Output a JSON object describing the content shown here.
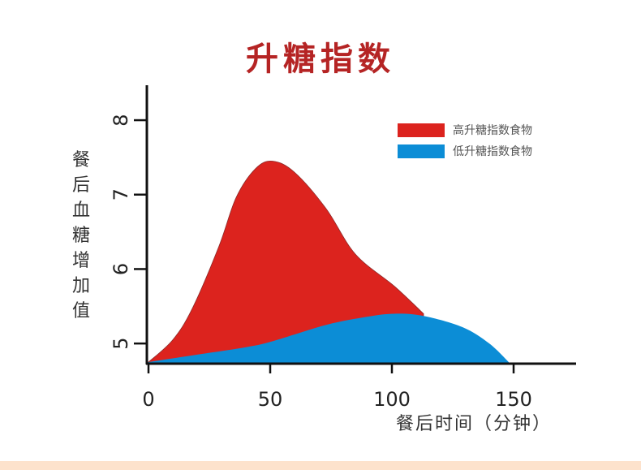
{
  "chart_data": {
    "type": "area",
    "title": "升糖指数",
    "xlabel": "餐后时间（分钟）",
    "ylabel": "餐后血糖增加值",
    "xlim": [
      0,
      175
    ],
    "ylim": [
      4.74,
      8.47
    ],
    "xticks": [
      "0",
      "50",
      "100",
      "150"
    ],
    "xtick_values": [
      0,
      50,
      100,
      150
    ],
    "yticks": [
      "5",
      "6",
      "7",
      "8"
    ],
    "ytick_values": [
      5,
      6,
      7,
      8
    ],
    "grid": false,
    "legend_position": "top-right",
    "series": [
      {
        "name": "高升糖指数食物",
        "color": "#dc231e",
        "x": [
          0,
          10,
          18,
          29,
          36,
          44,
          51,
          60,
          73,
          85,
          101,
          113
        ],
        "y": [
          4.75,
          5.05,
          5.47,
          6.31,
          6.96,
          7.35,
          7.45,
          7.3,
          6.81,
          6.2,
          5.77,
          5.4
        ]
      },
      {
        "name": "低升糖指数食物",
        "color": "#0c8dd6",
        "x": [
          0,
          20,
          40,
          51,
          73,
          90,
          101,
          113,
          129,
          140,
          148
        ],
        "y": [
          4.75,
          4.85,
          4.95,
          5.03,
          5.25,
          5.36,
          5.4,
          5.37,
          5.22,
          5.0,
          4.75
        ]
      }
    ]
  }
}
